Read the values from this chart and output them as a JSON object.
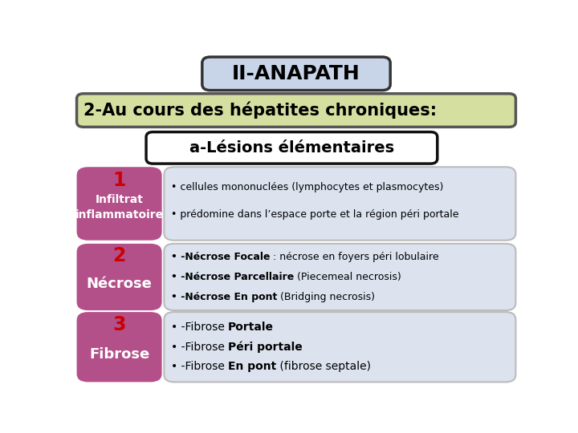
{
  "title": "II-ANAPATH",
  "subtitle": "2-Au cours des hépatites chroniques:",
  "section": "a-Lésions élémentaires",
  "bg_color": "#ffffff",
  "title_box_facecolor": "#c8d4e8",
  "title_box_edgecolor": "#333333",
  "subtitle_box_facecolor": "#d5e0a0",
  "subtitle_box_edgecolor": "#555555",
  "section_box_facecolor": "#ffffff",
  "section_box_edgecolor": "#111111",
  "left_box_color": "#b3508a",
  "right_box_color": "#dce3ef",
  "right_box_edge": "#bbbbbb",
  "number_color": "#cc0000",
  "left_text_color": "#ffffff",
  "right_text_color": "#000000",
  "rows": [
    {
      "number": "1",
      "left_top": "Infiltrat",
      "left_bot": "inflammatoire",
      "bullet_lines": [
        [
          {
            "text": "• cellules mononuclées (lymphocytes et plasmocytes)",
            "bold": false
          }
        ],
        [
          {
            "text": "• prédomine dans l’espace porte et la région péri portale",
            "bold": false
          }
        ]
      ]
    },
    {
      "number": "2",
      "left_top": "",
      "left_bot": "Nécrose",
      "bullet_lines": [
        [
          {
            "text": "• -Nécrose Focale",
            "bold": true
          },
          {
            "text": " : nécrose en foyers péri lobulaire",
            "bold": false
          }
        ],
        [
          {
            "text": "• -Nécrose Parcellaire",
            "bold": true
          },
          {
            "text": " (Piecemeal necrosis)",
            "bold": false
          }
        ],
        [
          {
            "text": "• -Nécrose En pont",
            "bold": true
          },
          {
            "text": " (Bridging necrosis)",
            "bold": false
          }
        ]
      ]
    },
    {
      "number": "3",
      "left_top": "",
      "left_bot": "Fibrose",
      "bullet_lines": [
        [
          {
            "text": "• -Fibrose ",
            "bold": false
          },
          {
            "text": "Portale",
            "bold": true
          }
        ],
        [
          {
            "text": "• -Fibrose ",
            "bold": false
          },
          {
            "text": "Péri portale",
            "bold": true
          }
        ],
        [
          {
            "text": "• -Fibrose ",
            "bold": false
          },
          {
            "text": "En pont",
            "bold": true
          },
          {
            "text": " (fibrose septale)",
            "bold": false
          }
        ]
      ]
    }
  ]
}
